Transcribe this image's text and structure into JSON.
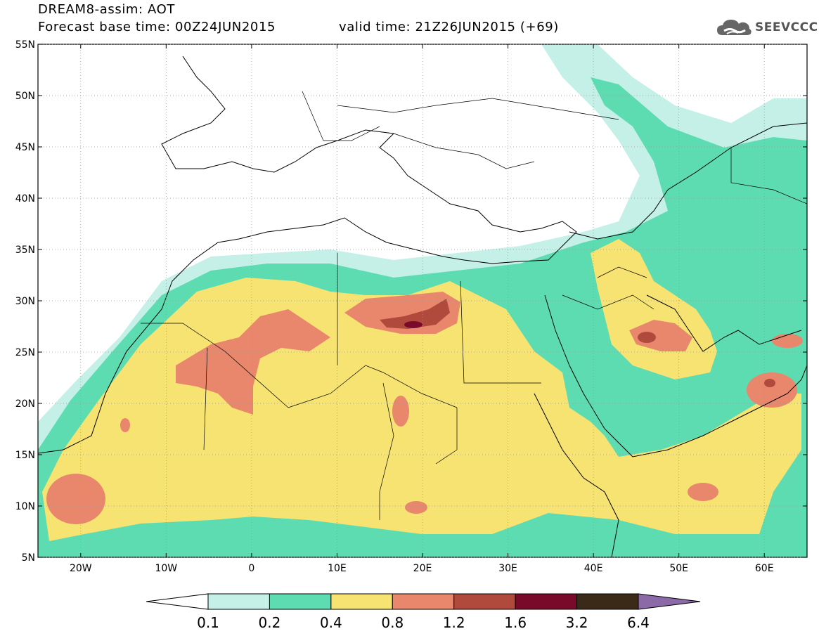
{
  "header": {
    "title_line1": "DREAM8-assim: AOT",
    "title_line2": "Forecast base time: 00Z24JUN2015",
    "valid_time": "valid time: 21Z26JUN2015 (+69)"
  },
  "logo": {
    "text": "SEEVCCC",
    "icon": "cloud-icon",
    "color": "#555555"
  },
  "map": {
    "lon_labels": [
      "20W",
      "10W",
      "0",
      "10E",
      "20E",
      "30E",
      "40E",
      "50E",
      "60E"
    ],
    "lat_labels": [
      "55N",
      "50N",
      "45N",
      "40N",
      "35N",
      "30N",
      "25N",
      "20N",
      "15N",
      "10N",
      "5N"
    ],
    "lon_range": [
      -25,
      65
    ],
    "lat_range": [
      5,
      55
    ]
  },
  "colorbar": {
    "levels": [
      "0.1",
      "0.2",
      "0.4",
      "0.8",
      "1.2",
      "1.6",
      "3.2",
      "6.4"
    ],
    "colors": [
      "#ffffff",
      "#c4f0e8",
      "#5ddcb2",
      "#f6e372",
      "#e8876c",
      "#b04a3c",
      "#7a0a2a",
      "#3c2a18",
      "#8c6aa8"
    ]
  }
}
